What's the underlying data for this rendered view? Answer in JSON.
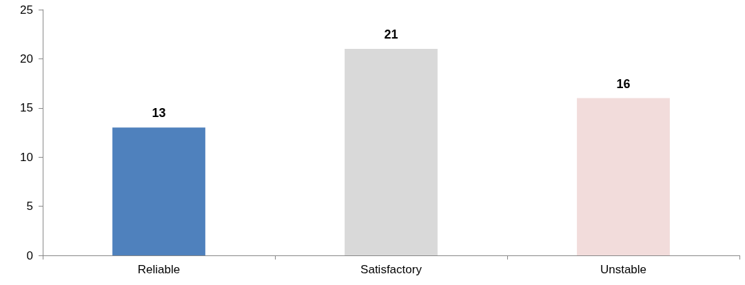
{
  "chart_data": {
    "type": "bar",
    "categories": [
      "Reliable",
      "Satisfactory",
      "Unstable"
    ],
    "values": [
      13,
      21,
      16
    ],
    "colors": [
      "#4f81bd",
      "#d9d9d9",
      "#f2dcdb"
    ],
    "ylim": [
      0,
      25
    ],
    "yticks": [
      0,
      5,
      10,
      15,
      20,
      25
    ],
    "grid": false,
    "data_labels": true
  }
}
